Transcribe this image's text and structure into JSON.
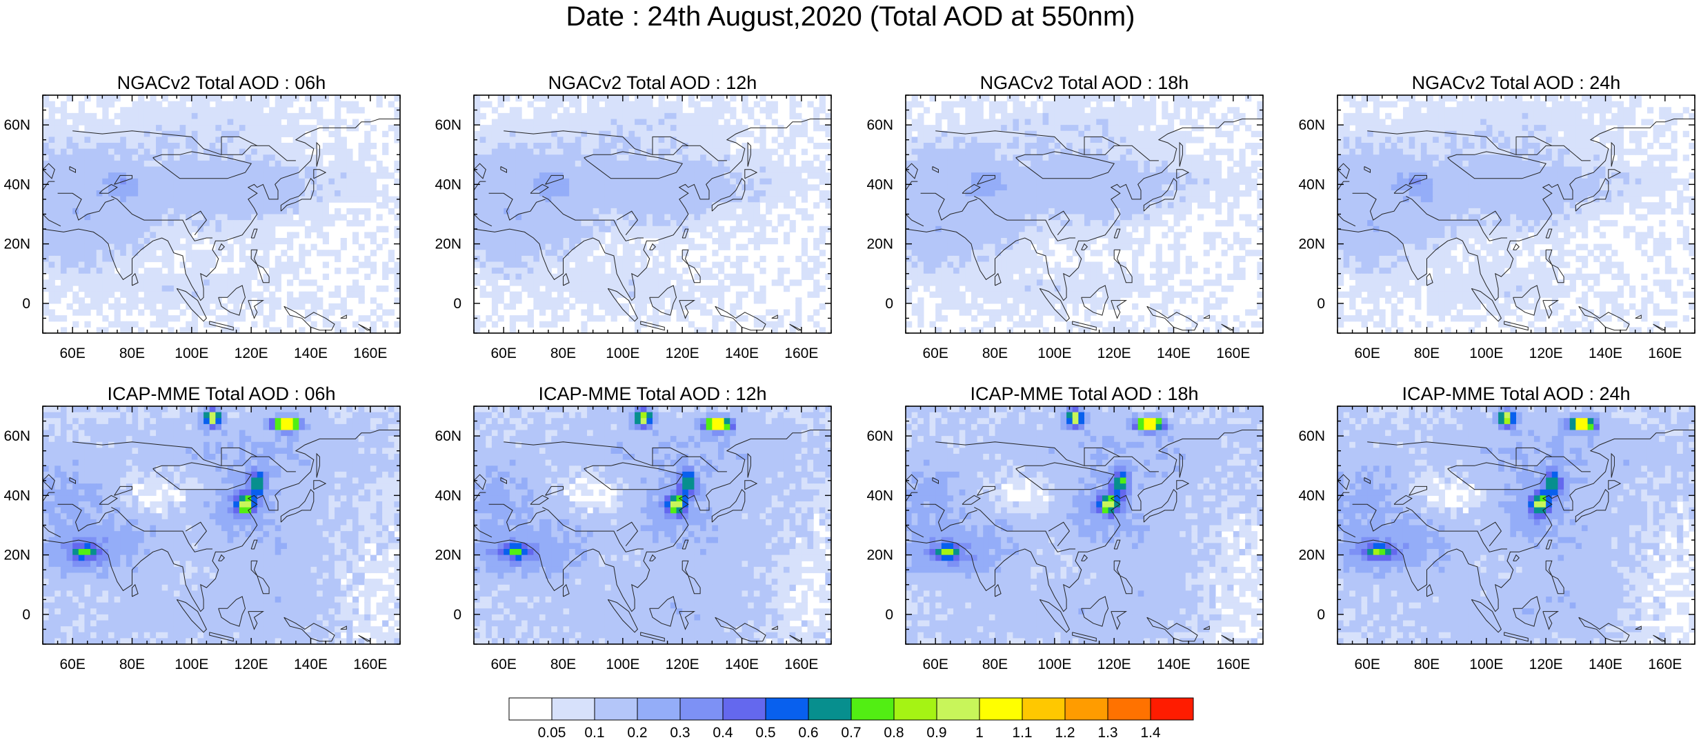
{
  "title": "Date : 24th August,2020 (Total AOD at 550nm)",
  "panels": [
    {
      "title": "NGACv2 Total AOD : 06h",
      "model": "ngac",
      "seed": 11
    },
    {
      "title": "NGACv2 Total AOD : 12h",
      "model": "ngac",
      "seed": 12
    },
    {
      "title": "NGACv2 Total AOD : 18h",
      "model": "ngac",
      "seed": 13
    },
    {
      "title": "NGACv2 Total AOD : 24h",
      "model": "ngac",
      "seed": 14
    },
    {
      "title": "ICAP-MME Total AOD : 06h",
      "model": "icap",
      "seed": 21
    },
    {
      "title": "ICAP-MME Total AOD : 12h",
      "model": "icap",
      "seed": 22
    },
    {
      "title": "ICAP-MME Total AOD : 18h",
      "model": "icap",
      "seed": 23
    },
    {
      "title": "ICAP-MME Total AOD : 24h",
      "model": "icap",
      "seed": 24
    }
  ],
  "map": {
    "lon_range": [
      50,
      170
    ],
    "lat_range": [
      -10,
      70
    ],
    "lon_ticks": [
      "60E",
      "80E",
      "100E",
      "120E",
      "140E",
      "160E"
    ],
    "lat_ticks": [
      "0",
      "20N",
      "40N",
      "60N"
    ]
  },
  "colorbar": {
    "tick_labels": [
      "0.05",
      "0.1",
      "0.2",
      "0.3",
      "0.4",
      "0.5",
      "0.6",
      "0.7",
      "0.8",
      "0.9",
      "1",
      "1.1",
      "1.2",
      "1.3",
      "1.4"
    ],
    "colors": [
      "#ffffff",
      "#d7e1fb",
      "#b4c6f9",
      "#94adf8",
      "#7d91f5",
      "#6468ee",
      "#0860ee",
      "#078f8e",
      "#52ee13",
      "#a5f314",
      "#c8f55a",
      "#ffff00",
      "#ffc800",
      "#ff9c00",
      "#ff7200",
      "#ff1c00"
    ]
  }
}
